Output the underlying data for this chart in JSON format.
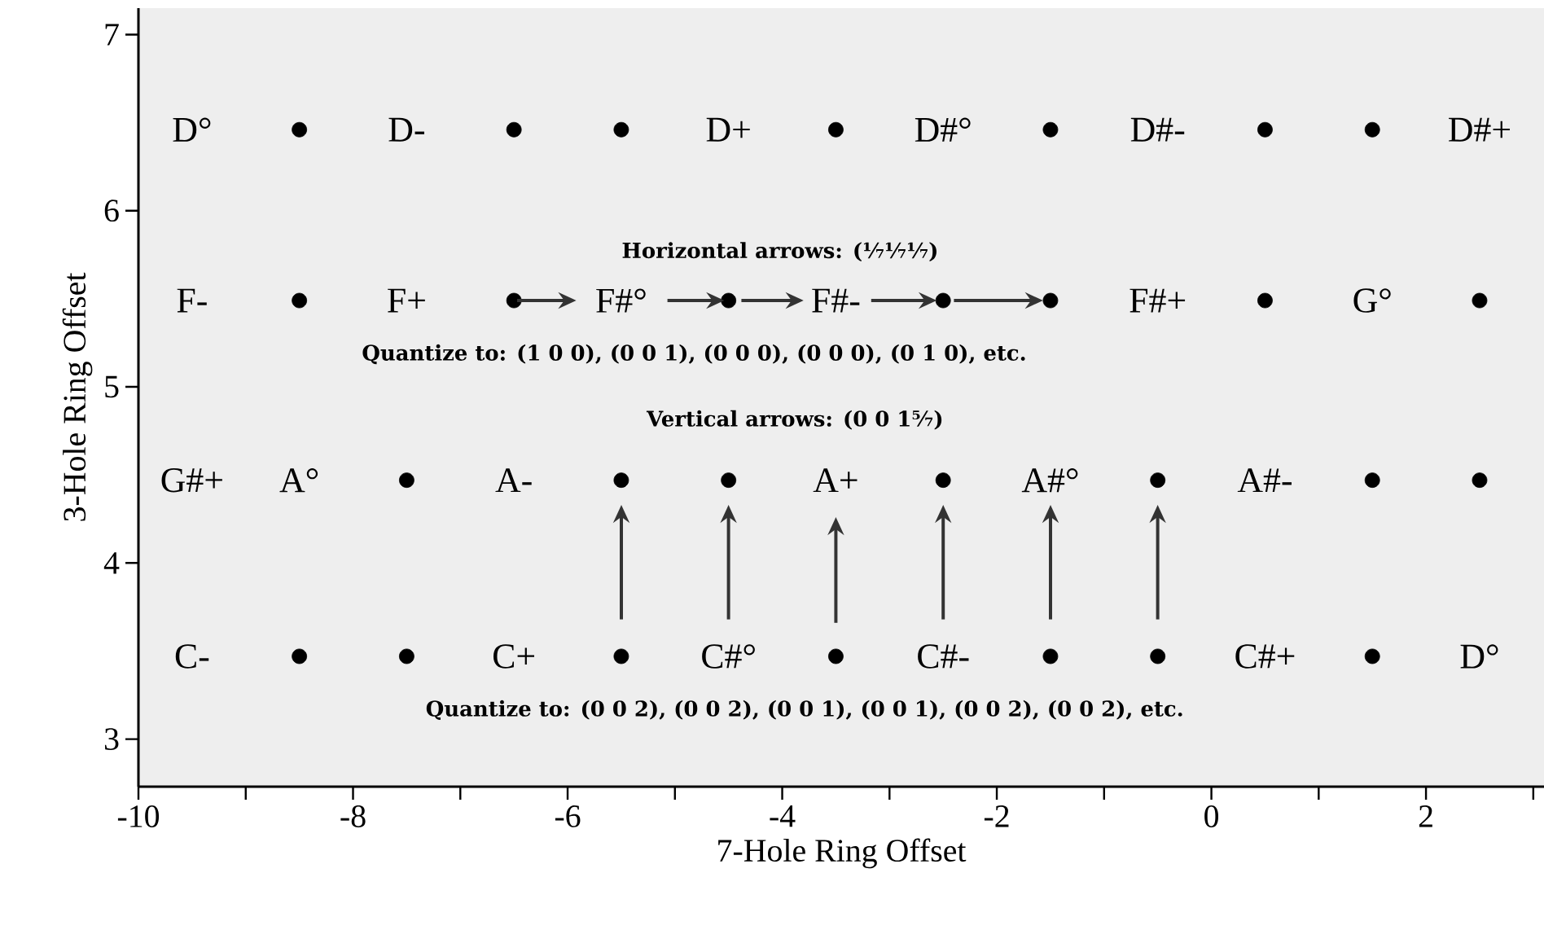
{
  "chart_data": {
    "type": "scatter",
    "xlabel": "7-Hole Ring Offset",
    "ylabel": "3-Hole Ring Offset",
    "xlim": [
      -10,
      3.1
    ],
    "ylim": [
      2.73,
      7.15
    ],
    "xticks": [
      -10,
      {
        "value": -9,
        "label": null
      },
      -8,
      {
        "value": -7,
        "label": null
      },
      -6,
      {
        "value": -5,
        "label": null
      },
      -4,
      {
        "value": -3,
        "label": null
      },
      -2,
      {
        "value": -1,
        "label": null
      },
      0,
      {
        "value": 1,
        "label": null
      },
      2,
      {
        "value": 3,
        "label": null
      }
    ],
    "yticks": [
      3,
      4,
      5,
      6,
      7
    ],
    "marker": "circle",
    "series": [
      {
        "color": "#000000",
        "x": [
          -8.5,
          -6.5,
          -5.5,
          -3.5,
          -1.5,
          0.5,
          1.5,
          -8.5,
          -6.5,
          -4.5,
          -2.5,
          -1.5,
          0.5,
          2.5,
          -7.5,
          -5.5,
          -4.5,
          -2.5,
          -0.5,
          1.5,
          2.5,
          -8.5,
          -7.5,
          -5.5,
          -3.5,
          -1.5,
          -0.5,
          1.5
        ],
        "values": [
          6.46,
          6.46,
          6.46,
          6.46,
          6.46,
          6.46,
          6.46,
          5.49,
          5.49,
          5.49,
          5.49,
          5.49,
          5.49,
          5.49,
          4.47,
          4.47,
          4.47,
          4.47,
          4.47,
          4.47,
          4.47,
          3.47,
          3.47,
          3.47,
          3.47,
          3.47,
          3.47,
          3.47
        ]
      }
    ],
    "annotations": [
      "Horizontal arrows: (¹⁄₇¹⁄₇¹⁄₇)",
      "Quantize to: (1 0 0), (0 0 1), (0 0 0), (0 0 0), (0 1 0), etc.",
      "Vertical arrows: (0 0 1⁵⁄₇)",
      "Quantize to: (0 0 2), (0 0 2), (0 0 1), (0 0 1), (0 0 2), (0 0 2), etc.",
      "D°",
      "D-",
      "D+",
      "D#°",
      "D#-",
      "D#+",
      "F-",
      "F+",
      "F#°",
      "F#-",
      "F#+",
      "G°",
      "G#+",
      "A°",
      "A-",
      "A+",
      "A#°",
      "A#-",
      "C-",
      "C+",
      "C#°",
      "C#-",
      "C#+",
      "D°"
    ]
  }
}
